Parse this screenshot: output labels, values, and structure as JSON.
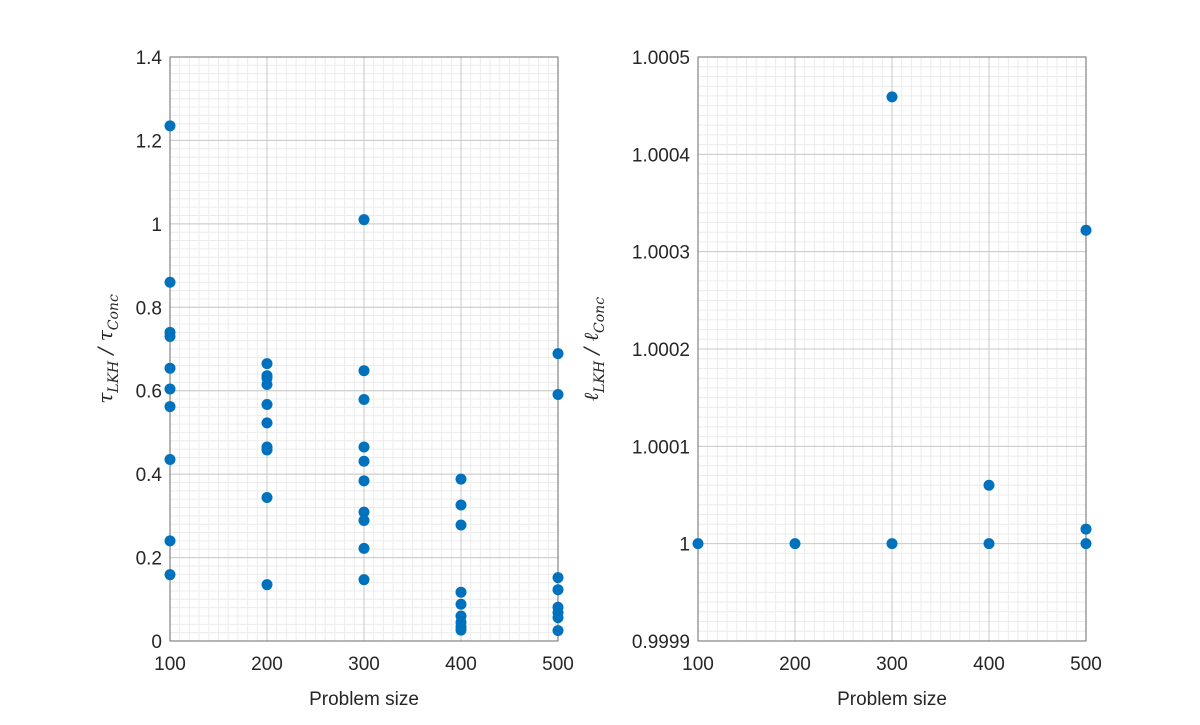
{
  "chart_data": [
    {
      "type": "scatter",
      "xlabel": "Problem size",
      "ylabel": "τ_LKH / τ_Conc",
      "ylabel_main": "τ",
      "ylabel_sub": "LKH",
      "ylabel_den_main": "τ",
      "ylabel_den_sub": "Conc",
      "xlim": [
        100,
        500
      ],
      "ylim": [
        0,
        1.4
      ],
      "xticks": [
        "100",
        "200",
        "300",
        "400",
        "500"
      ],
      "yticks": [
        "0",
        "0.2",
        "0.4",
        "0.6",
        "0.8",
        "1",
        "1.2",
        "1.4"
      ],
      "grid": true,
      "minor_grid": true,
      "marker_color": "#0072BD",
      "points": [
        [
          100,
          1.235
        ],
        [
          100,
          0.86
        ],
        [
          100,
          0.74
        ],
        [
          100,
          0.73
        ],
        [
          100,
          0.654
        ],
        [
          100,
          0.604
        ],
        [
          100,
          0.562
        ],
        [
          100,
          0.435
        ],
        [
          100,
          0.24
        ],
        [
          100,
          0.159
        ],
        [
          200,
          0.665
        ],
        [
          200,
          0.636
        ],
        [
          200,
          0.63
        ],
        [
          200,
          0.615
        ],
        [
          200,
          0.567
        ],
        [
          200,
          0.523
        ],
        [
          200,
          0.465
        ],
        [
          200,
          0.458
        ],
        [
          200,
          0.344
        ],
        [
          200,
          0.135
        ],
        [
          300,
          1.01
        ],
        [
          300,
          0.648
        ],
        [
          300,
          0.579
        ],
        [
          300,
          0.465
        ],
        [
          300,
          0.431
        ],
        [
          300,
          0.384
        ],
        [
          300,
          0.309
        ],
        [
          300,
          0.289
        ],
        [
          300,
          0.222
        ],
        [
          300,
          0.147
        ],
        [
          400,
          0.388
        ],
        [
          400,
          0.326
        ],
        [
          400,
          0.278
        ],
        [
          400,
          0.117
        ],
        [
          400,
          0.088
        ],
        [
          400,
          0.06
        ],
        [
          400,
          0.045
        ],
        [
          400,
          0.034
        ],
        [
          400,
          0.026
        ],
        [
          500,
          0.689
        ],
        [
          500,
          0.591
        ],
        [
          500,
          0.152
        ],
        [
          500,
          0.123
        ],
        [
          500,
          0.081
        ],
        [
          500,
          0.068
        ],
        [
          500,
          0.056
        ],
        [
          500,
          0.025
        ]
      ]
    },
    {
      "type": "scatter",
      "xlabel": "Problem size",
      "ylabel": "ℓ_LKH / ℓ_Conc",
      "ylabel_main": "ℓ",
      "ylabel_sub": "LKH",
      "ylabel_den_main": "ℓ",
      "ylabel_den_sub": "Conc",
      "xlim": [
        100,
        500
      ],
      "ylim": [
        0.9999,
        1.0005
      ],
      "xticks": [
        "100",
        "200",
        "300",
        "400",
        "500"
      ],
      "yticks": [
        "0.9999",
        "1",
        "1.0001",
        "1.0002",
        "1.0003",
        "1.0004",
        "1.0005"
      ],
      "grid": true,
      "minor_grid": true,
      "marker_color": "#0072BD",
      "points": [
        [
          100,
          1.0
        ],
        [
          200,
          1.0
        ],
        [
          300,
          1.0
        ],
        [
          300,
          1.000459
        ],
        [
          400,
          1.0
        ],
        [
          400,
          1.00006
        ],
        [
          500,
          1.0
        ],
        [
          500,
          1.000015
        ],
        [
          500,
          1.000322
        ]
      ]
    }
  ]
}
